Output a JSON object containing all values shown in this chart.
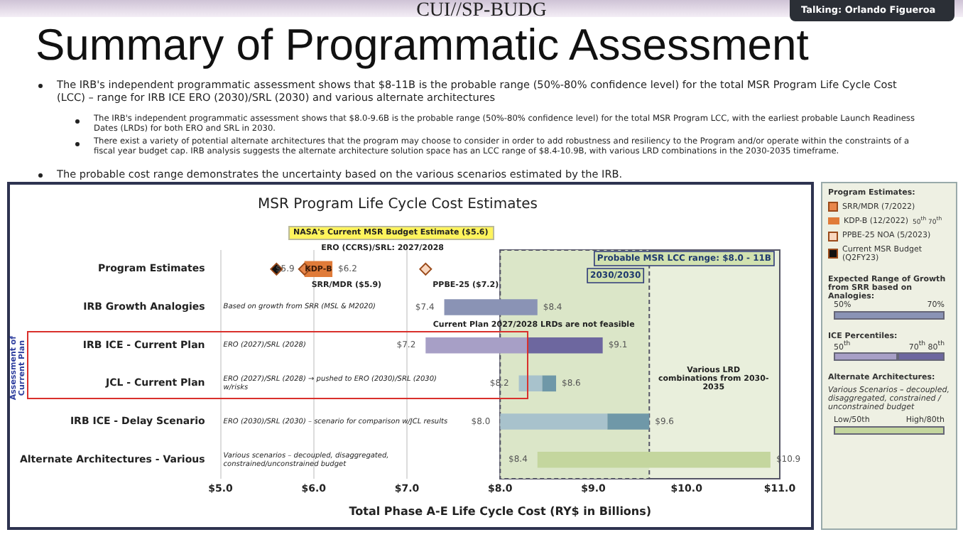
{
  "chart_data": {
    "type": "bar",
    "orientation": "horizontal",
    "title": "Summary of Programmatic Assessment",
    "subtitle": "MSR Program Life Cycle Cost Estimates",
    "xlabel": "Total Phase A-E Life Cycle Cost (RY$ in Billions)",
    "legend_title": "Program Estimates:",
    "legend": "right",
    "grid": "x",
    "categories": [
      "Program Estimates",
      "IRB Growth Analogies",
      "IRB ICE - Current Plan",
      "JCL - Current Plan",
      "IRB ICE - Delay Scenario",
      "Alternate Architectures - Various"
    ],
    "xlim": [
      5.0,
      11.0
    ],
    "xticks": [
      {
        "value": 5,
        "label": "$5.0"
      },
      {
        "value": 6,
        "label": "$6.0"
      },
      {
        "value": 7,
        "label": "$7.0"
      },
      {
        "value": 8,
        "label": "$8.0"
      },
      {
        "value": 9,
        "label": "$9.0"
      },
      {
        "value": 10,
        "label": "$10.0"
      },
      {
        "value": 11,
        "label": "$11.0"
      }
    ],
    "series": [
      {
        "name": "SRR/MDR (7/2022)",
        "type": "scatter",
        "marker": "diamond",
        "color": "#e8864a",
        "x": [
          "Program Estimates"
        ],
        "values": [
          5.9
        ]
      },
      {
        "name": "KDP-B (12/2022)",
        "type": "bar",
        "color": "#e07b39",
        "base": [
          5.9,
          null,
          null,
          null,
          null,
          null
        ],
        "values": [
          0.3,
          null,
          null,
          null,
          null,
          null
        ],
        "value_labels": [
          "KDP-B",
          null,
          null,
          null,
          null,
          null
        ]
      },
      {
        "name": "PPBE-25 NOA (5/2023)",
        "type": "scatter",
        "marker": "diamond",
        "color": "#f9d7bf",
        "x": [
          "Program Estimates"
        ],
        "values": [
          7.2
        ]
      },
      {
        "name": "Current MSR Budget (Q2FY23)",
        "type": "scatter",
        "marker": "diamond",
        "color": "#111111",
        "x": [
          "Program Estimates"
        ],
        "values": [
          5.6
        ]
      },
      {
        "type": "bar",
        "color": "#8a93b5",
        "base": [
          null,
          7.4,
          null,
          null,
          null,
          null
        ],
        "values": [
          null,
          1.0,
          null,
          null,
          null,
          null
        ]
      },
      {
        "type": "bar",
        "colors": [
          null,
          null,
          "#a79fc6",
          "#a8c2cc",
          "#a8c2cc",
          null
        ],
        "base": [
          null,
          null,
          7.2,
          8.2,
          8.0,
          null
        ],
        "values": [
          null,
          null,
          1.1,
          0.25,
          1.15,
          null
        ]
      },
      {
        "type": "bar",
        "colors": [
          null,
          null,
          "#6d679f",
          "#6f98a8",
          "#6f98a8",
          null
        ],
        "base": [
          null,
          null,
          8.3,
          8.45,
          9.15,
          null
        ],
        "values": [
          null,
          null,
          0.8,
          0.15,
          0.45,
          null
        ]
      },
      {
        "type": "bar",
        "color": "#c4d69e",
        "base": [
          null,
          null,
          null,
          null,
          null,
          8.4
        ],
        "values": [
          null,
          null,
          null,
          null,
          null,
          2.5
        ]
      }
    ],
    "bands": [
      {
        "axis": "x",
        "from": 8.0,
        "to": 11.0,
        "label": "Probable MSR LCC range: $8.0 - 11B",
        "color": "#e9efdc"
      },
      {
        "axis": "x",
        "from": 8.0,
        "to": 9.6,
        "label": "2030/2030",
        "color": "#dbe6c8"
      }
    ],
    "annotations": [
      "CUI//SP-BUDG",
      "Talking: Orlando Figueroa",
      "The IRB's independent programmatic assessment shows that $8-11B is the probable range (50%-80% confidence level) for the total MSR Program Life Cycle Cost (LCC) – range for IRB ICE ERO (2030)/SRL (2030) and various alternate architectures",
      "The IRB's independent programmatic assessment shows that $8.0-9.6B is the probable range (50%-80% confidence level) for the total MSR Program LCC, with the earliest probable Launch Readiness Dates (LRDs) for both ERO and SRL in 2030.",
      "There exist a variety of potential alternate architectures that the program may choose to consider in order to add robustness and resiliency to the Program and/or operate within the constraints of a fiscal year budget cap. IRB analysis suggests the alternate architecture solution space has an LCC range of $8.4-10.9B, with various LRD combinations in the 2030-2035 timeframe.",
      "The probable cost range demonstrates the uncertainty based on the various scenarios estimated by the IRB.",
      "Assessment of Current Plan",
      "Expected Range of Growth from SRR based on Analogies:",
      "50%",
      "70%",
      "ICE Percentiles:",
      "50$^{th}$",
      "70$^{th}$",
      "80$^{th}$",
      "Alternate Architectures:",
      "Various Scenarios – decoupled, disaggregated, constrained / unconstrained budget",
      "Low/50th",
      "High/80th",
      "50$^{th}$",
      "70$^{th}$",
      "NASA's Current MSR Budget Estimate ($5.6)",
      "ERO (CCRS)/SRL: 2027/2028",
      "Based on growth from SRR (MSL & M2020)",
      "ERO (2027)/SRL (2028)",
      "Current Plan 2027/2028 LRDs are not feasible",
      "ERO (2027)/SRL (2028) → pushed to ERO (2030)/SRL (2030) w/risks",
      "Various LRD combinations from 2030-2035",
      "ERO (2030)/SRL (2030) – scenario for comparison w/JCL results",
      "Various scenarios – decoupled, disaggregated, constrained/unconstrained budget",
      {
        "text": "$5.9",
        "x": 5.9,
        "y": "Program Estimates"
      },
      {
        "text": "$6.2",
        "x": 6.2,
        "y": "Program Estimates"
      },
      {
        "text": "SRR/MDR ($5.9)",
        "x": 5.9,
        "y": "Program Estimates"
      },
      {
        "text": "PPBE-25 ($7.2)",
        "x": 7.2,
        "y": "Program Estimates"
      },
      {
        "text": "$7.4",
        "x": 7.4,
        "y": "IRB Growth Analogies"
      },
      {
        "text": "$8.4",
        "x": 8.4,
        "y": "IRB Growth Analogies"
      },
      {
        "text": "$7.2",
        "x": 7.2,
        "y": "IRB ICE - Current Plan"
      },
      {
        "text": "$9.1",
        "x": 9.1,
        "y": "IRB ICE - Current Plan"
      },
      {
        "text": "$8.2",
        "x": 8.2,
        "y": "JCL - Current Plan"
      },
      {
        "text": "$8.6",
        "x": 8.6,
        "y": "JCL - Current Plan"
      },
      {
        "text": "$8.0",
        "x": 8.0,
        "y": "IRB ICE - Delay Scenario"
      },
      {
        "text": "$9.6",
        "x": 9.6,
        "y": "IRB ICE - Delay Scenario"
      },
      {
        "text": "$8.4",
        "x": 8.4,
        "y": "Alternate Architectures - Various"
      },
      {
        "text": "$10.9",
        "x": 10.9,
        "y": "Alternate Architectures - Various"
      }
    ]
  }
}
